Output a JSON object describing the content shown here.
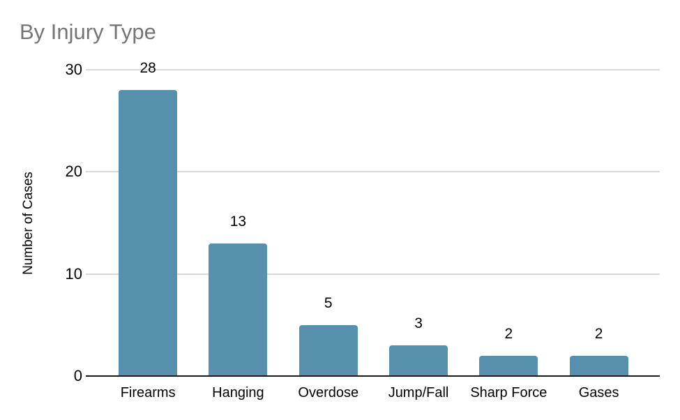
{
  "chart_data": {
    "type": "bar",
    "title": "By Injury Type",
    "categories": [
      "Firearms",
      "Hanging",
      "Overdose",
      "Jump/Fall",
      "Sharp Force",
      "Gases"
    ],
    "values": [
      28,
      13,
      5,
      3,
      2,
      2
    ],
    "xlabel": "",
    "ylabel": "Number of Cases",
    "ylim": [
      0,
      30
    ],
    "yticks": [
      0,
      10,
      20,
      30
    ],
    "grid": true,
    "legend": "none",
    "data_labels_shown": true,
    "colors": {
      "bar": "#5790ad",
      "gridline": "#d9d9d9",
      "axis": "#1a1a1a",
      "title": "#757575",
      "labels": "#000000",
      "background": "#ffffff"
    }
  }
}
